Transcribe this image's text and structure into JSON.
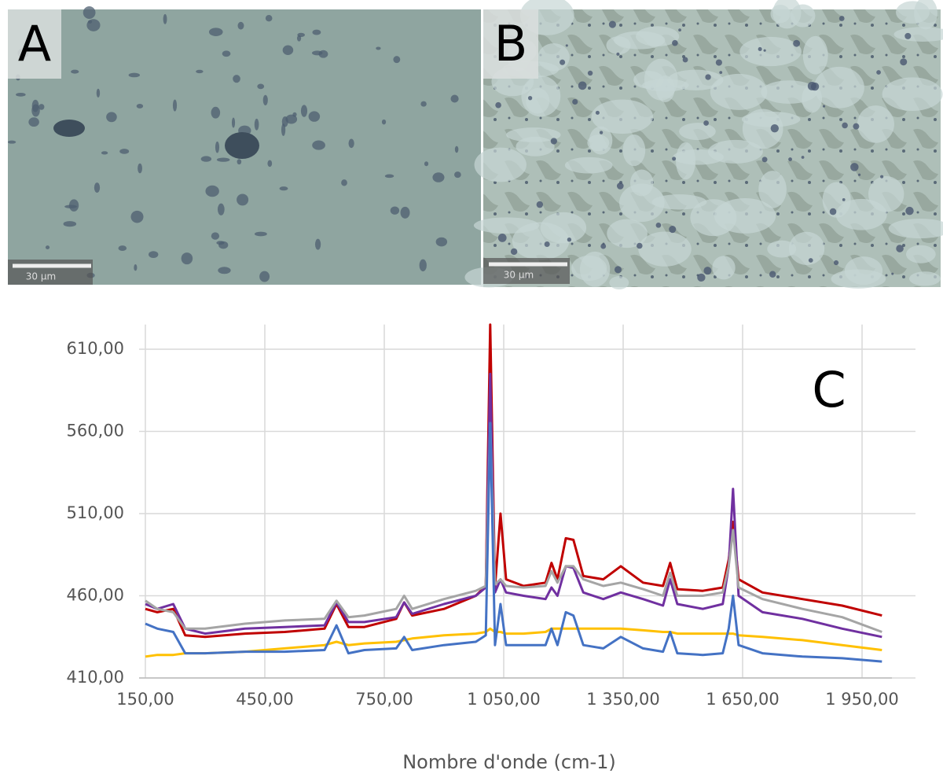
{
  "panels": [
    {
      "label": "A",
      "scale_bar": "30 µm"
    },
    {
      "label": "B",
      "scale_bar": "30 µm"
    }
  ],
  "chart_data": {
    "type": "line",
    "annotation": "C",
    "x_label": "Nombre d'onde (cm-1)",
    "x": [
      150,
      180,
      220,
      250,
      300,
      400,
      500,
      600,
      630,
      660,
      700,
      780,
      800,
      820,
      900,
      980,
      1005,
      1016,
      1028,
      1042,
      1056,
      1100,
      1155,
      1170,
      1185,
      1206,
      1225,
      1250,
      1300,
      1344,
      1400,
      1450,
      1468,
      1486,
      1550,
      1600,
      1615,
      1626,
      1640,
      1700,
      1800,
      1900,
      2000
    ],
    "series": [
      {
        "color": "#c00000",
        "values": [
          452,
          450,
          452,
          436,
          435,
          437,
          438,
          440,
          455,
          441,
          441,
          446,
          456,
          448,
          452,
          460,
          466,
          625,
          465,
          510,
          470,
          466,
          468,
          480,
          470,
          495,
          494,
          472,
          470,
          478,
          468,
          466,
          480,
          464,
          463,
          465,
          482,
          505,
          470,
          462,
          458,
          454,
          448
        ]
      },
      {
        "color": "#7030a0",
        "values": [
          455,
          452,
          455,
          440,
          437,
          440,
          441,
          442,
          456,
          444,
          444,
          447,
          456,
          449,
          455,
          460,
          465,
          595,
          462,
          470,
          462,
          460,
          458,
          465,
          460,
          478,
          477,
          462,
          458,
          462,
          458,
          454,
          470,
          455,
          452,
          455,
          478,
          525,
          460,
          450,
          446,
          440,
          435
        ]
      },
      {
        "color": "#a5a5a5",
        "values": [
          457,
          452,
          450,
          440,
          440,
          443,
          445,
          446,
          457,
          447,
          448,
          452,
          460,
          452,
          458,
          463,
          466,
          565,
          467,
          470,
          466,
          465,
          466,
          475,
          468,
          478,
          478,
          470,
          466,
          468,
          464,
          460,
          474,
          460,
          460,
          462,
          478,
          500,
          465,
          458,
          452,
          447,
          438
        ]
      },
      {
        "color": "#ffc000",
        "values": [
          423,
          424,
          424,
          425,
          425,
          426,
          428,
          430,
          432,
          430,
          431,
          432,
          433,
          434,
          436,
          437,
          438,
          440,
          438,
          438,
          437,
          437,
          438,
          440,
          440,
          440,
          440,
          440,
          440,
          440,
          439,
          438,
          438,
          437,
          437,
          437,
          437,
          437,
          436,
          435,
          433,
          430,
          427
        ]
      },
      {
        "color": "#4472c4",
        "values": [
          443,
          440,
          438,
          425,
          425,
          426,
          426,
          427,
          442,
          425,
          427,
          428,
          435,
          427,
          430,
          432,
          436,
          565,
          430,
          455,
          430,
          430,
          430,
          440,
          430,
          450,
          448,
          430,
          428,
          435,
          428,
          426,
          438,
          425,
          424,
          425,
          440,
          460,
          430,
          425,
          423,
          422,
          420
        ]
      }
    ],
    "xlim": [
      150,
      2000
    ],
    "ylim": [
      410,
      625
    ],
    "xticks": [
      {
        "value": 150,
        "label": "150,00"
      },
      {
        "value": 450,
        "label": "450,00"
      },
      {
        "value": 750,
        "label": "750,00"
      },
      {
        "value": 1050,
        "label": "1 050,00"
      },
      {
        "value": 1350,
        "label": "1 350,00"
      },
      {
        "value": 1650,
        "label": "1 650,00"
      },
      {
        "value": 1950,
        "label": "1 950,00"
      }
    ],
    "yticks": [
      {
        "value": 410,
        "label": "410,00"
      },
      {
        "value": 460,
        "label": "460,00"
      },
      {
        "value": 510,
        "label": "510,00"
      },
      {
        "value": 560,
        "label": "560,00"
      },
      {
        "value": 610,
        "label": "610,00"
      }
    ],
    "grid": true
  }
}
